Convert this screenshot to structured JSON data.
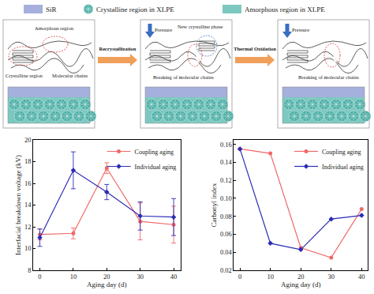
{
  "legend": [
    {
      "label": "SiR"
    },
    {
      "label": "Crystalline region in XLPE"
    },
    {
      "label": "Amorphous region in XLPE"
    }
  ],
  "panels": [
    {
      "labels": [
        "Amorphous region",
        "Crystalline region",
        "Molecular chains"
      ]
    },
    {
      "labels": [
        "Pressure",
        "New crystalline phase",
        "Breaking of molecular chains"
      ]
    },
    {
      "labels": [
        "Pressure",
        "Breaking of molecular chains"
      ]
    }
  ],
  "arrows": [
    "Recrystallization",
    "Thermal Oxidation"
  ],
  "chart_data": [
    {
      "type": "line",
      "xlabel": "Aging day (d)",
      "ylabel": "Interfacial breakdown voltage (kV)",
      "x": [
        0,
        10,
        20,
        30,
        40
      ],
      "xlim": [
        -2,
        42
      ],
      "xticks": [
        0,
        10,
        20,
        30,
        40
      ],
      "ylim": [
        8,
        20
      ],
      "yticks": [
        8,
        10,
        12,
        14,
        16,
        18,
        20
      ],
      "grid": false,
      "legend": "upper right",
      "series": [
        {
          "name": "Coupling aging",
          "color": "#f06868",
          "marker": "circle",
          "values": [
            11.3,
            11.4,
            17.4,
            12.5,
            12.2
          ],
          "error": [
            0.5,
            0.5,
            0.5,
            1.7,
            1.7
          ]
        },
        {
          "name": "Individual aging",
          "color": "#2b2bb5",
          "marker": "diamond",
          "values": [
            11.0,
            17.2,
            15.2,
            13.0,
            12.9
          ],
          "error": [
            0.8,
            1.7,
            0.7,
            1.3,
            1.7
          ]
        }
      ]
    },
    {
      "type": "line",
      "xlabel": "Aging day (d)",
      "ylabel": "Carbonyl index",
      "x": [
        0,
        10,
        20,
        30,
        40
      ],
      "xlim": [
        -2,
        42
      ],
      "xticks": [
        0,
        10,
        20,
        30,
        40
      ],
      "ylim": [
        0.02,
        0.165
      ],
      "yticks": [
        0.02,
        0.04,
        0.06,
        0.08,
        {
          "value": 0.1,
          "label": "0.10"
        },
        0.12,
        0.14,
        0.16
      ],
      "grid": false,
      "legend": "upper right",
      "series": [
        {
          "name": "Coupling aging",
          "color": "#f06868",
          "marker": "circle",
          "values": [
            0.155,
            0.15,
            0.045,
            0.034,
            0.088
          ]
        },
        {
          "name": "Individual aging",
          "color": "#2b2bb5",
          "marker": "diamond",
          "values": [
            0.155,
            0.05,
            0.043,
            0.077,
            0.081
          ]
        }
      ]
    }
  ]
}
